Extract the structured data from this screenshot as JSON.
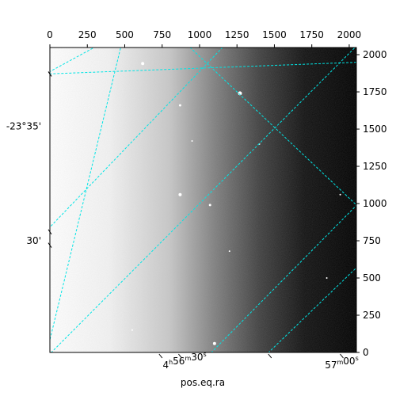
{
  "chart_data": {
    "type": "heatmap",
    "title": "",
    "xlabel": "pos.eq.ra",
    "ylabel": "",
    "pixel_axes": {
      "x_ticks": [
        0,
        250,
        500,
        750,
        1000,
        1250,
        1500,
        1750,
        2000
      ],
      "y_ticks": [
        0,
        250,
        500,
        750,
        1000,
        1250,
        1500,
        1750,
        2000
      ],
      "xlim": [
        0,
        2048
      ],
      "ylim": [
        0,
        2048
      ]
    },
    "world_axes": {
      "ra_tick_labels": [
        {
          "major": "4",
          "major_unit": "h",
          "minor": "56",
          "minor_unit": "m",
          "sec": "30",
          "sec_unit": "s",
          "x": 900
        },
        {
          "major": "",
          "major_unit": "",
          "minor": "57",
          "minor_unit": "m",
          "sec": "00",
          "sec_unit": "s",
          "x": 1950
        }
      ],
      "dec_tick_labels": [
        {
          "label": "-23°35'",
          "y": 1520
        },
        {
          "label": "30'",
          "y": 750
        }
      ]
    },
    "image": {
      "colormap": "gray",
      "gradient": "bright on left, dark on right",
      "brightness_stops": [
        {
          "x": 0,
          "level": 1.0
        },
        {
          "x": 400,
          "level": 0.95
        },
        {
          "x": 800,
          "level": 0.78
        },
        {
          "x": 1100,
          "level": 0.5
        },
        {
          "x": 1400,
          "level": 0.25
        },
        {
          "x": 1700,
          "level": 0.07
        },
        {
          "x": 2048,
          "level": 0.0
        }
      ],
      "stars": [
        {
          "x": 620,
          "y": 1940,
          "r": 2
        },
        {
          "x": 1270,
          "y": 1740,
          "r": 2.5
        },
        {
          "x": 870,
          "y": 1660,
          "r": 1.5
        },
        {
          "x": 870,
          "y": 1060,
          "r": 2
        },
        {
          "x": 1070,
          "y": 990,
          "r": 1.5
        },
        {
          "x": 1100,
          "y": 60,
          "r": 2
        },
        {
          "x": 1200,
          "y": 680,
          "r": 1
        },
        {
          "x": 1940,
          "y": 1060,
          "r": 1
        },
        {
          "x": 1850,
          "y": 500,
          "r": 1
        },
        {
          "x": 550,
          "y": 150,
          "r": 1
        },
        {
          "x": 950,
          "y": 1420,
          "r": 1
        },
        {
          "x": 1400,
          "y": 1400,
          "r": 1
        }
      ]
    },
    "grid": {
      "color": "#00e5e5",
      "style": "dashed",
      "line_set_a": [
        {
          "x1": -30,
          "y1": 1870,
          "x2": 500,
          "y2": 2160
        },
        {
          "x1": -30,
          "y1": 810,
          "x2": 1260,
          "y2": 2160
        },
        {
          "x1": -30,
          "y1": -40,
          "x2": 2080,
          "y2": 2090
        },
        {
          "x1": 1040,
          "y1": -40,
          "x2": 2080,
          "y2": 1020
        }
      ],
      "line_set_b": [
        {
          "x1": -30,
          "y1": -40,
          "x2": 500,
          "y2": 2160
        },
        {
          "x1": 820,
          "y1": 2160,
          "x2": 2080,
          "y2": 960
        },
        {
          "x1": -30,
          "y1": 1870,
          "x2": 2080,
          "y2": 1950
        },
        {
          "x1": 1420,
          "y1": -40,
          "x2": 2080,
          "y2": 600
        }
      ]
    }
  }
}
